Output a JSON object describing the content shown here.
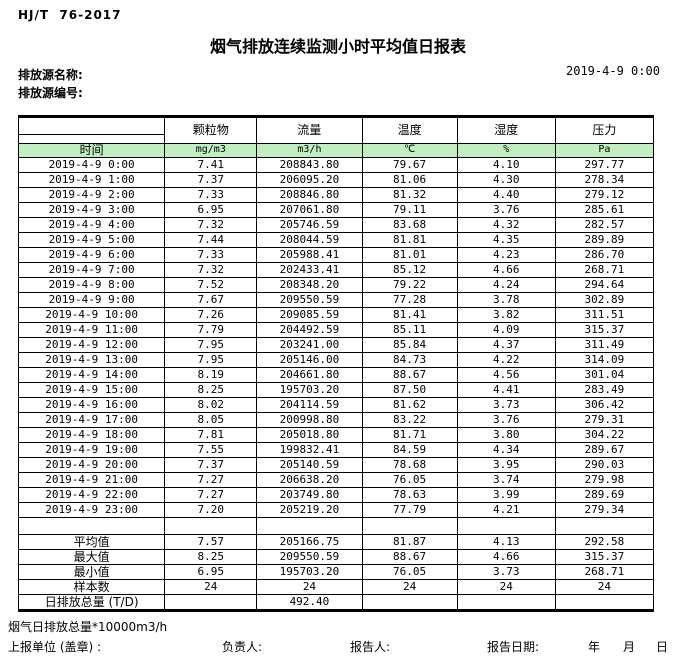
{
  "header": {
    "standard": "HJ/T  76-2017",
    "title": "烟气排放连续监测小时平均值日报表",
    "source_name_label": "排放源名称:",
    "source_code_label": "排放源编号:",
    "datetime": "2019-4-9 0:00"
  },
  "table": {
    "time_header": "时间",
    "param_headers": [
      "颗粒物",
      "流量",
      "温度",
      "湿度",
      "压力"
    ],
    "units": [
      "mg/m3",
      "m3/h",
      "℃",
      "%",
      "Pa"
    ],
    "rows": [
      {
        "time": "2019-4-9 0:00",
        "values": [
          "7.41",
          "208843.80",
          "79.67",
          "4.10",
          "297.77"
        ]
      },
      {
        "time": "2019-4-9 1:00",
        "values": [
          "7.37",
          "206095.20",
          "81.06",
          "4.30",
          "278.34"
        ]
      },
      {
        "time": "2019-4-9 2:00",
        "values": [
          "7.33",
          "208846.80",
          "81.32",
          "4.40",
          "279.12"
        ]
      },
      {
        "time": "2019-4-9 3:00",
        "values": [
          "6.95",
          "207061.80",
          "79.11",
          "3.76",
          "285.61"
        ]
      },
      {
        "time": "2019-4-9 4:00",
        "values": [
          "7.32",
          "205746.59",
          "83.68",
          "4.32",
          "282.57"
        ]
      },
      {
        "time": "2019-4-9 5:00",
        "values": [
          "7.44",
          "208044.59",
          "81.81",
          "4.35",
          "289.89"
        ]
      },
      {
        "time": "2019-4-9 6:00",
        "values": [
          "7.33",
          "205988.41",
          "81.01",
          "4.23",
          "286.70"
        ]
      },
      {
        "time": "2019-4-9 7:00",
        "values": [
          "7.32",
          "202433.41",
          "85.12",
          "4.66",
          "268.71"
        ]
      },
      {
        "time": "2019-4-9 8:00",
        "values": [
          "7.52",
          "208348.20",
          "79.22",
          "4.24",
          "294.64"
        ]
      },
      {
        "time": "2019-4-9 9:00",
        "values": [
          "7.67",
          "209550.59",
          "77.28",
          "3.78",
          "302.89"
        ]
      },
      {
        "time": "2019-4-9 10:00",
        "values": [
          "7.26",
          "209085.59",
          "81.41",
          "3.82",
          "311.51"
        ]
      },
      {
        "time": "2019-4-9 11:00",
        "values": [
          "7.79",
          "204492.59",
          "85.11",
          "4.09",
          "315.37"
        ]
      },
      {
        "time": "2019-4-9 12:00",
        "values": [
          "7.95",
          "203241.00",
          "85.84",
          "4.37",
          "311.49"
        ]
      },
      {
        "time": "2019-4-9 13:00",
        "values": [
          "7.95",
          "205146.00",
          "84.73",
          "4.22",
          "314.09"
        ]
      },
      {
        "time": "2019-4-9 14:00",
        "values": [
          "8.19",
          "204661.80",
          "88.67",
          "4.56",
          "301.04"
        ]
      },
      {
        "time": "2019-4-9 15:00",
        "values": [
          "8.25",
          "195703.20",
          "87.50",
          "4.41",
          "283.49"
        ]
      },
      {
        "time": "2019-4-9 16:00",
        "values": [
          "8.02",
          "204114.59",
          "81.62",
          "3.73",
          "306.42"
        ]
      },
      {
        "time": "2019-4-9 17:00",
        "values": [
          "8.05",
          "200998.80",
          "83.22",
          "3.76",
          "279.31"
        ]
      },
      {
        "time": "2019-4-9 18:00",
        "values": [
          "7.81",
          "205018.80",
          "81.71",
          "3.80",
          "304.22"
        ]
      },
      {
        "time": "2019-4-9 19:00",
        "values": [
          "7.55",
          "199832.41",
          "84.59",
          "4.34",
          "289.67"
        ]
      },
      {
        "time": "2019-4-9 20:00",
        "values": [
          "7.37",
          "205140.59",
          "78.68",
          "3.95",
          "290.03"
        ]
      },
      {
        "time": "2019-4-9 21:00",
        "values": [
          "7.27",
          "206638.20",
          "76.05",
          "3.74",
          "279.98"
        ]
      },
      {
        "time": "2019-4-9 22:00",
        "values": [
          "7.27",
          "203749.80",
          "78.63",
          "3.99",
          "289.69"
        ]
      },
      {
        "time": "2019-4-9 23:00",
        "values": [
          "7.20",
          "205219.20",
          "77.79",
          "4.21",
          "279.34"
        ]
      }
    ],
    "summary": [
      {
        "label": "平均值",
        "values": [
          "7.57",
          "205166.75",
          "81.87",
          "4.13",
          "292.58"
        ]
      },
      {
        "label": "最大值",
        "values": [
          "8.25",
          "209550.59",
          "88.67",
          "4.66",
          "315.37"
        ]
      },
      {
        "label": "最小值",
        "values": [
          "6.95",
          "195703.20",
          "76.05",
          "3.73",
          "268.71"
        ]
      },
      {
        "label": "样本数",
        "values": [
          "24",
          "24",
          "24",
          "24",
          "24"
        ]
      },
      {
        "label": "日排放总量 (T/D)",
        "values": [
          "",
          "492.40",
          "",
          "",
          ""
        ]
      }
    ]
  },
  "footer": {
    "note": "烟气日排放总量*10000m3/h",
    "unit_label": "上报单位 (盖章) :",
    "responsible_label": "负责人:",
    "reporter_label": "报告人:",
    "report_date_label": "报告日期:",
    "year_label": "年",
    "month_label": "月",
    "day_label": "日"
  },
  "colors": {
    "header_band_green": "#c2efc2"
  }
}
